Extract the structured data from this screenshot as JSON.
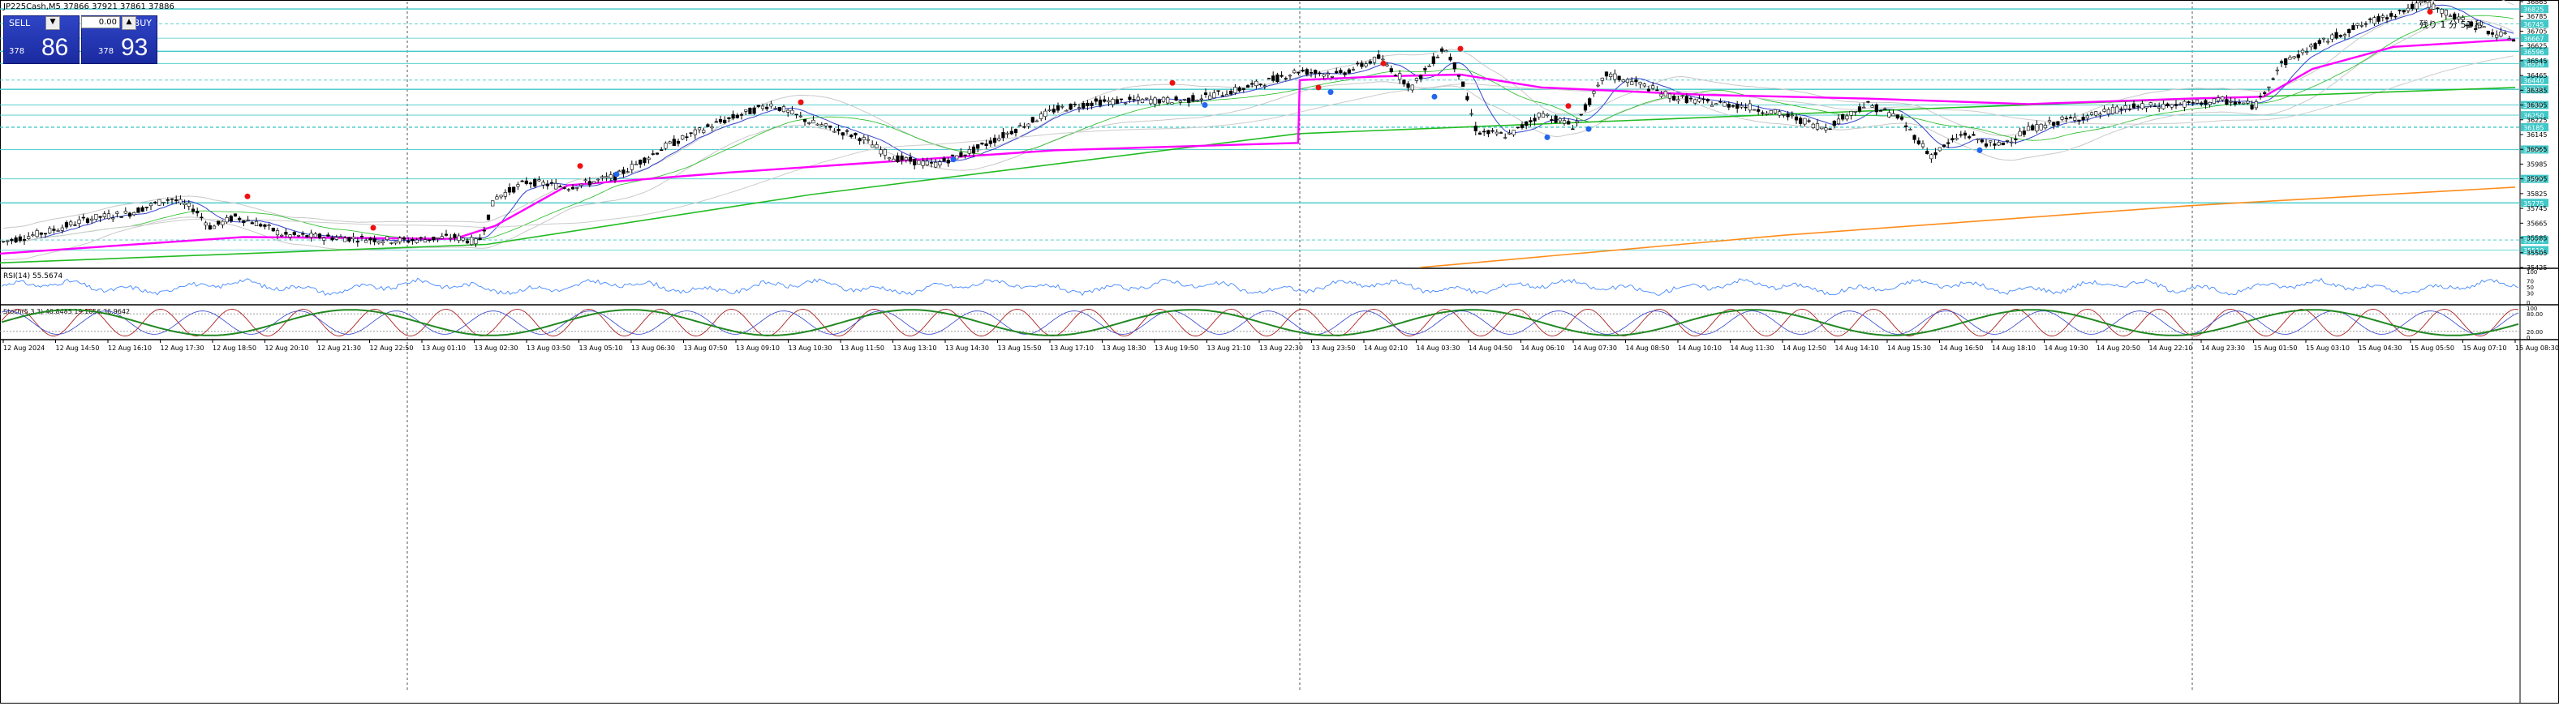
{
  "title": "JP225Cash,M5  37866 37921 37861 37886",
  "timer": "残り 1 分 51 秒",
  "trade": {
    "sell_label": "SELL",
    "buy_label": "BUY",
    "lot": "0.00",
    "sell_small": "378",
    "sell_big": "86",
    "buy_small": "378",
    "buy_big": "93",
    "up_arrow": "▲",
    "down_arrow": "▼"
  },
  "indicators": {
    "rsi_label": "RSI(14) 55.5674",
    "rsi_scale": [
      "100",
      "70",
      "50",
      "30",
      "0"
    ],
    "stoch_label": "Stoch(5,3,3) 40.8485 19.1656 36.9642",
    "stoch_scale": [
      "100",
      "80.00",
      "20.00",
      "0"
    ]
  },
  "colors": {
    "candle": "#000000",
    "vwap": "#ff00ff",
    "ma_green": "#22bb22",
    "ma_orange": "#ff8c1a",
    "ma_blue": "#3344cc",
    "bollinger": "#c8c8c8",
    "level_line": "#40c8c8",
    "red_dot": "#ee1111",
    "blue_dot": "#2266ee",
    "rsi": "#4488ff",
    "stoch_red": "#aa2222",
    "stoch_green": "#228822",
    "stoch_blue": "#3344cc"
  },
  "chart_data": {
    "type": "candlestick",
    "symbol": "JP225Cash",
    "timeframe": "M5",
    "ohlc_header": {
      "open": 37866,
      "high": 37921,
      "low": 37861,
      "close": 37886
    },
    "ylim": [
      35425,
      36865
    ],
    "y_ticks": [
      36865,
      36785,
      36705,
      36625,
      36545,
      36465,
      36385,
      36305,
      36225,
      36145,
      36065,
      35985,
      35905,
      35825,
      35745,
      35665,
      35585,
      35505,
      35425
    ],
    "horizontal_levels": [
      36825,
      36745,
      36667,
      36596,
      36530,
      36440,
      36390,
      36305,
      36250,
      36185,
      36064,
      35905,
      35775,
      35574,
      35519
    ],
    "x_tick_labels": [
      "12 Aug 2024",
      "12 Aug 14:50",
      "12 Aug 16:10",
      "12 Aug 17:30",
      "12 Aug 18:50",
      "12 Aug 20:10",
      "12 Aug 21:30",
      "12 Aug 22:50",
      "13 Aug 01:10",
      "13 Aug 02:30",
      "13 Aug 03:50",
      "13 Aug 05:10",
      "13 Aug 06:30",
      "13 Aug 07:50",
      "13 Aug 09:10",
      "13 Aug 10:30",
      "13 Aug 11:50",
      "13 Aug 13:10",
      "13 Aug 14:30",
      "13 Aug 15:50",
      "13 Aug 17:10",
      "13 Aug 18:30",
      "13 Aug 19:50",
      "13 Aug 21:10",
      "13 Aug 22:30",
      "13 Aug 23:50",
      "14 Aug 02:10",
      "14 Aug 03:30",
      "14 Aug 04:50",
      "14 Aug 06:10",
      "14 Aug 07:30",
      "14 Aug 08:50",
      "14 Aug 10:10",
      "14 Aug 11:30",
      "14 Aug 12:50",
      "14 Aug 14:10",
      "14 Aug 15:30",
      "14 Aug 16:50",
      "14 Aug 18:10",
      "14 Aug 19:30",
      "14 Aug 20:50",
      "14 Aug 22:10",
      "14 Aug 23:30",
      "15 Aug 01:50",
      "15 Aug 03:10",
      "15 Aug 04:30",
      "15 Aug 05:50",
      "15 Aug 07:10",
      "15 Aug 08:30"
    ],
    "day_separators": [
      "12 Aug 23:59",
      "13 Aug 23:59",
      "14 Aug 23:59"
    ],
    "price_path": [
      [
        0,
        35560
      ],
      [
        60,
        35620
      ],
      [
        110,
        35690
      ],
      [
        160,
        35720
      ],
      [
        210,
        35800
      ],
      [
        240,
        35740
      ],
      [
        260,
        35640
      ],
      [
        290,
        35700
      ],
      [
        320,
        35660
      ],
      [
        350,
        35600
      ],
      [
        400,
        35590
      ],
      [
        450,
        35580
      ],
      [
        500,
        35570
      ],
      [
        560,
        35590
      ],
      [
        590,
        35560
      ],
      [
        610,
        35800
      ],
      [
        650,
        35890
      ],
      [
        700,
        35860
      ],
      [
        760,
        35920
      ],
      [
        820,
        36080
      ],
      [
        880,
        36200
      ],
      [
        950,
        36310
      ],
      [
        1000,
        36210
      ],
      [
        1060,
        36130
      ],
      [
        1100,
        36020
      ],
      [
        1150,
        35980
      ],
      [
        1200,
        36060
      ],
      [
        1250,
        36170
      ],
      [
        1300,
        36280
      ],
      [
        1350,
        36320
      ],
      [
        1400,
        36330
      ],
      [
        1460,
        36330
      ],
      [
        1520,
        36380
      ],
      [
        1560,
        36430
      ],
      [
        1600,
        36490
      ],
      [
        1650,
        36470
      ],
      [
        1700,
        36560
      ],
      [
        1740,
        36400
      ],
      [
        1780,
        36620
      ],
      [
        1800,
        36460
      ],
      [
        1820,
        36160
      ],
      [
        1860,
        36140
      ],
      [
        1900,
        36260
      ],
      [
        1940,
        36190
      ],
      [
        1980,
        36470
      ],
      [
        2020,
        36420
      ],
      [
        2060,
        36350
      ],
      [
        2100,
        36320
      ],
      [
        2150,
        36300
      ],
      [
        2200,
        36250
      ],
      [
        2250,
        36180
      ],
      [
        2300,
        36310
      ],
      [
        2340,
        36240
      ],
      [
        2380,
        36030
      ],
      [
        2420,
        36150
      ],
      [
        2460,
        36080
      ],
      [
        2500,
        36170
      ],
      [
        2540,
        36220
      ],
      [
        2580,
        36250
      ],
      [
        2620,
        36290
      ],
      [
        2660,
        36300
      ],
      [
        2700,
        36310
      ],
      [
        2740,
        36330
      ],
      [
        2780,
        36300
      ],
      [
        2810,
        36520
      ],
      [
        2850,
        36620
      ],
      [
        2900,
        36720
      ],
      [
        2950,
        36800
      ],
      [
        2990,
        36860
      ],
      [
        3030,
        36770
      ],
      [
        3070,
        36700
      ],
      [
        3100,
        36660
      ]
    ],
    "rsi": {
      "period": 14,
      "last": 55.5674,
      "levels": [
        70,
        50,
        30
      ]
    },
    "stochastic": {
      "params": [
        5,
        3,
        3
      ],
      "k": 40.8485,
      "d": 19.1656,
      "slow": 36.9642,
      "levels": [
        80,
        20
      ]
    }
  }
}
